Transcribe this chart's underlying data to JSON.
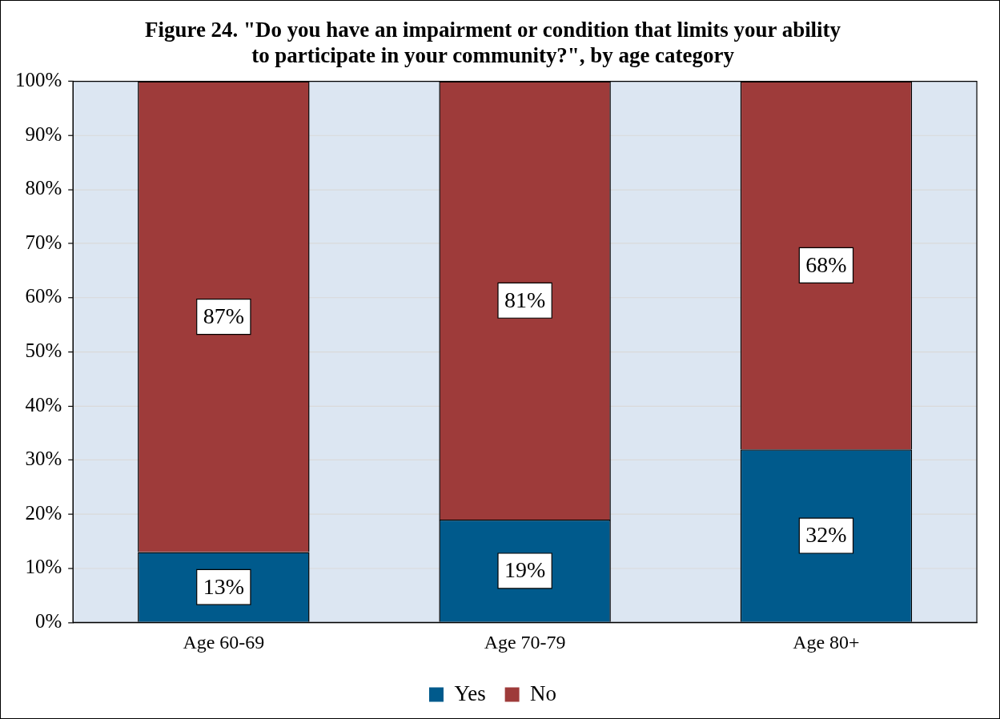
{
  "chart_data": {
    "type": "bar",
    "title": "Figure 24. \"Do you have an impairment or condition that limits your ability to participate in your community?\", by age category",
    "categories": [
      "Age 60-69",
      "Age 70-79",
      "Age 80+"
    ],
    "series": [
      {
        "name": "Yes",
        "color": "#005a8c",
        "values": [
          13,
          19,
          32
        ],
        "value_labels": [
          "13%",
          "19%",
          "32%"
        ]
      },
      {
        "name": "No",
        "color": "#9e3b3a",
        "values": [
          87,
          81,
          68
        ],
        "value_labels": [
          "87%",
          "81%",
          "68%"
        ]
      }
    ],
    "stacked": true,
    "ylim": [
      0,
      100
    ],
    "yticks": [
      {
        "value": 0,
        "label": "0%"
      },
      {
        "value": 10,
        "label": "10%"
      },
      {
        "value": 20,
        "label": "20%"
      },
      {
        "value": 30,
        "label": "30%"
      },
      {
        "value": 40,
        "label": "40%"
      },
      {
        "value": 50,
        "label": "50%"
      },
      {
        "value": 60,
        "label": "60%"
      },
      {
        "value": 70,
        "label": "70%"
      },
      {
        "value": 80,
        "label": "80%"
      },
      {
        "value": 90,
        "label": "90%"
      },
      {
        "value": 100,
        "label": "100%"
      }
    ],
    "grid": "y",
    "legend": "bottom"
  }
}
